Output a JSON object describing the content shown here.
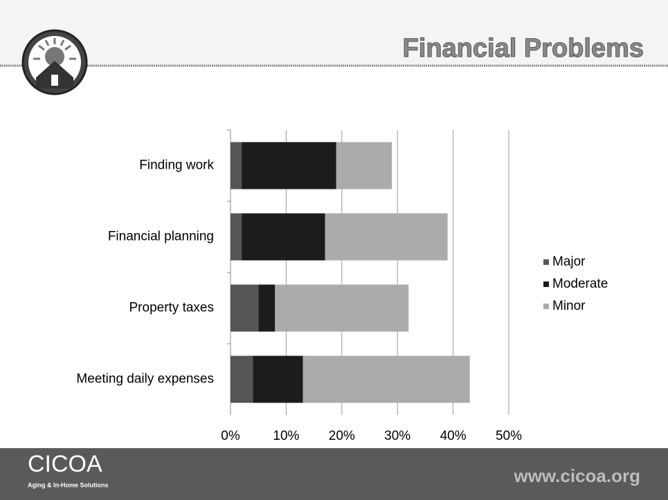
{
  "header": {
    "title": "Financial Problems"
  },
  "chart_data": {
    "type": "stacked-bar-horizontal",
    "categories": [
      "Finding work",
      "Financial planning",
      "Property taxes",
      "Meeting daily expenses"
    ],
    "series": [
      {
        "name": "Major",
        "color": "#555555",
        "values": [
          2,
          2,
          5,
          4
        ]
      },
      {
        "name": "Moderate",
        "color": "#1c1c1c",
        "values": [
          17,
          15,
          3,
          9
        ]
      },
      {
        "name": "Minor",
        "color": "#ababab",
        "values": [
          10,
          22,
          24,
          30
        ]
      }
    ],
    "xlim": [
      0,
      50
    ],
    "xticks": [
      {
        "value": 0,
        "label": "0%"
      },
      {
        "value": 10,
        "label": "10%"
      },
      {
        "value": 20,
        "label": "20%"
      },
      {
        "value": 30,
        "label": "30%"
      },
      {
        "value": 40,
        "label": "40%"
      },
      {
        "value": 50,
        "label": "50%"
      }
    ],
    "grid": true,
    "legend": "right"
  },
  "footer": {
    "logo": "CICOA",
    "tagline": "Aging & In-Home Solutions",
    "url": "www.cicoa.org"
  }
}
